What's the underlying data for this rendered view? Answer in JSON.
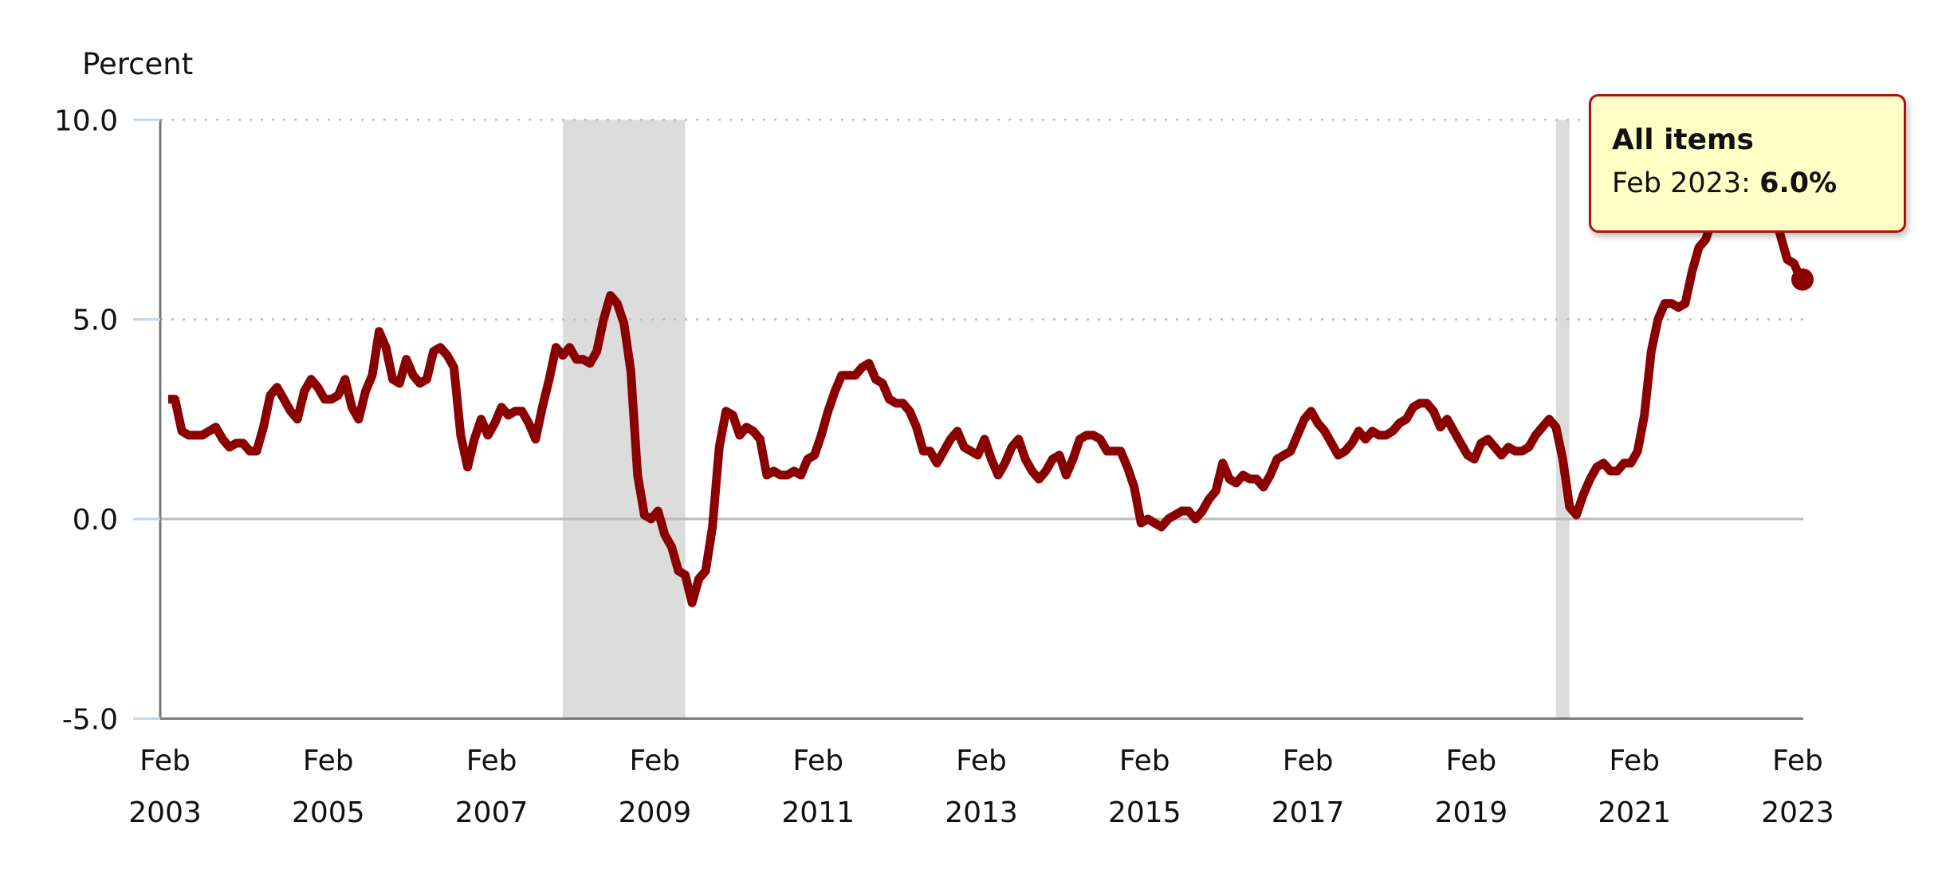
{
  "chart_data": {
    "type": "line",
    "ylabel": "Percent",
    "ylim": [
      -5,
      10
    ],
    "yticks": [
      "10.0",
      "5.0",
      "0.0",
      "-5.0"
    ],
    "ytick_values": [
      10,
      5,
      0,
      -5
    ],
    "xticks": [
      {
        "month": "Feb",
        "year": "2003"
      },
      {
        "month": "Feb",
        "year": "2005"
      },
      {
        "month": "Feb",
        "year": "2007"
      },
      {
        "month": "Feb",
        "year": "2009"
      },
      {
        "month": "Feb",
        "year": "2011"
      },
      {
        "month": "Feb",
        "year": "2013"
      },
      {
        "month": "Feb",
        "year": "2015"
      },
      {
        "month": "Feb",
        "year": "2017"
      },
      {
        "month": "Feb",
        "year": "2019"
      },
      {
        "month": "Feb",
        "year": "2021"
      },
      {
        "month": "Feb",
        "year": "2023"
      }
    ],
    "x_start": "Feb 2003",
    "x_end": "Feb 2023",
    "frequency": "monthly",
    "recessions": [
      [
        "Dec 2007",
        "Jun 2009"
      ],
      [
        "Feb 2020",
        "Apr 2020"
      ]
    ],
    "series": [
      {
        "name": "All items",
        "color": "#8b0000",
        "values": [
          3.0,
          3.0,
          2.2,
          2.1,
          2.1,
          2.1,
          2.2,
          2.3,
          2.0,
          1.8,
          1.9,
          1.9,
          1.7,
          1.7,
          2.3,
          3.1,
          3.3,
          3.0,
          2.7,
          2.5,
          3.2,
          3.5,
          3.3,
          3.0,
          3.0,
          3.1,
          3.5,
          2.8,
          2.5,
          3.2,
          3.6,
          4.7,
          4.3,
          3.5,
          3.4,
          4.0,
          3.6,
          3.4,
          3.5,
          4.2,
          4.3,
          4.1,
          3.8,
          2.1,
          1.3,
          2.0,
          2.5,
          2.1,
          2.4,
          2.8,
          2.6,
          2.7,
          2.7,
          2.4,
          2.0,
          2.8,
          3.5,
          4.3,
          4.1,
          4.3,
          4.0,
          4.0,
          3.9,
          4.2,
          5.0,
          5.6,
          5.4,
          4.9,
          3.7,
          1.1,
          0.1,
          0.0,
          0.2,
          -0.4,
          -0.7,
          -1.3,
          -1.4,
          -2.1,
          -1.5,
          -1.3,
          -0.2,
          1.8,
          2.7,
          2.6,
          2.1,
          2.3,
          2.2,
          2.0,
          1.1,
          1.2,
          1.1,
          1.1,
          1.2,
          1.1,
          1.5,
          1.6,
          2.1,
          2.7,
          3.2,
          3.6,
          3.6,
          3.6,
          3.8,
          3.9,
          3.5,
          3.4,
          3.0,
          2.9,
          2.9,
          2.7,
          2.3,
          1.7,
          1.7,
          1.4,
          1.7,
          2.0,
          2.2,
          1.8,
          1.7,
          1.6,
          2.0,
          1.5,
          1.1,
          1.4,
          1.8,
          2.0,
          1.5,
          1.2,
          1.0,
          1.2,
          1.5,
          1.6,
          1.1,
          1.5,
          2.0,
          2.1,
          2.1,
          2.0,
          1.7,
          1.7,
          1.7,
          1.3,
          0.8,
          -0.1,
          0.0,
          -0.1,
          -0.2,
          0.0,
          0.1,
          0.2,
          0.2,
          0.0,
          0.2,
          0.5,
          0.7,
          1.4,
          1.0,
          0.9,
          1.1,
          1.0,
          1.0,
          0.8,
          1.1,
          1.5,
          1.6,
          1.7,
          2.1,
          2.5,
          2.7,
          2.4,
          2.2,
          1.9,
          1.6,
          1.7,
          1.9,
          2.2,
          2.0,
          2.2,
          2.1,
          2.1,
          2.2,
          2.4,
          2.5,
          2.8,
          2.9,
          2.9,
          2.7,
          2.3,
          2.5,
          2.2,
          1.9,
          1.6,
          1.5,
          1.9,
          2.0,
          1.8,
          1.6,
          1.8,
          1.7,
          1.7,
          1.8,
          2.1,
          2.3,
          2.5,
          2.3,
          1.5,
          0.3,
          0.1,
          0.6,
          1.0,
          1.3,
          1.4,
          1.2,
          1.2,
          1.4,
          1.4,
          1.7,
          2.6,
          4.2,
          5.0,
          5.4,
          5.4,
          5.3,
          5.4,
          6.2,
          6.8,
          7.0,
          7.5,
          7.9,
          8.5,
          8.3,
          8.6,
          9.1,
          8.5,
          8.3,
          8.2,
          7.7,
          7.1,
          6.5,
          6.4,
          6.0
        ]
      }
    ],
    "grid": true,
    "recession_color": "#dcdcdc"
  },
  "tooltip": {
    "title": "All items",
    "date_label": "Feb 2023:",
    "value": "6.0%"
  }
}
